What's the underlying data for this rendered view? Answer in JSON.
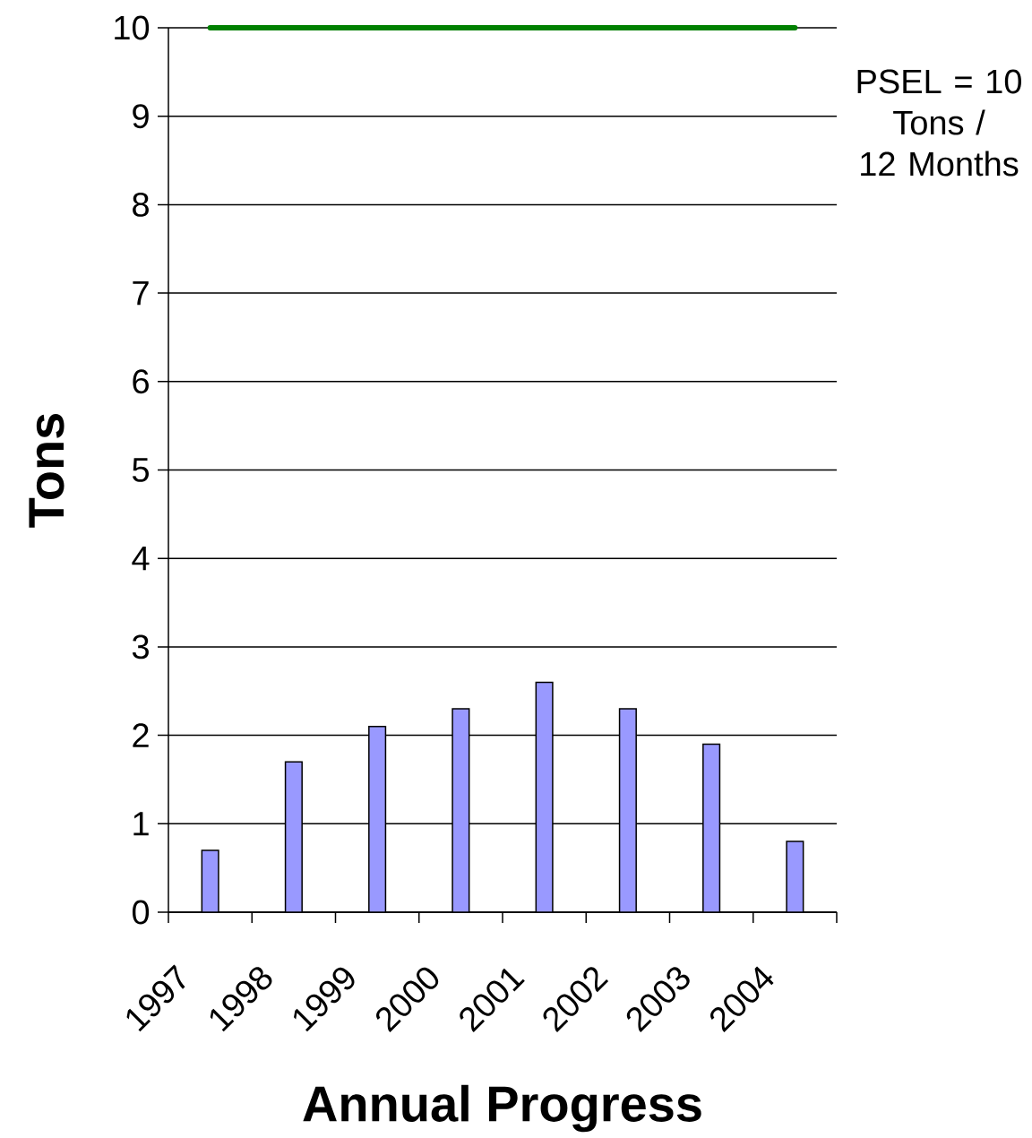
{
  "chart_data": {
    "type": "bar",
    "xlabel": "Annual Progress",
    "ylabel": "Tons",
    "categories": [
      "1997",
      "1998",
      "1999",
      "2000",
      "2001",
      "2002",
      "2003",
      "2004"
    ],
    "series": [
      {
        "color": "#9999ff",
        "values": [
          0.7,
          1.7,
          2.1,
          2.3,
          2.6,
          2.3,
          1.9,
          0.8
        ]
      }
    ],
    "ref_lines": [
      {
        "axis": "y",
        "value": 10,
        "label": "PSEL = 10\nTons /\n12 Months",
        "color": "#008000"
      }
    ],
    "ylim": [
      0,
      10
    ],
    "yticks": [
      0,
      1,
      2,
      3,
      4,
      5,
      6,
      7,
      8,
      9,
      10
    ],
    "grid": "y"
  }
}
